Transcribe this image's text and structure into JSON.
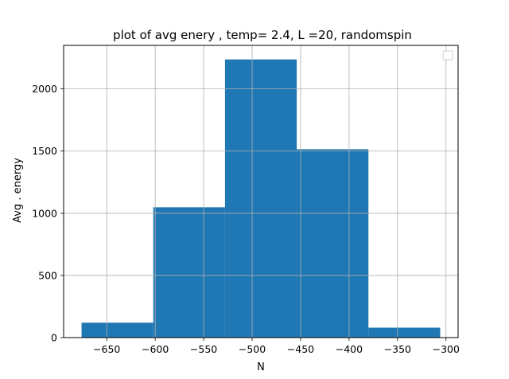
{
  "chart_data": {
    "type": "bar",
    "title": "plot of avg enery , temp= 2.4, L =20, randomspin",
    "xlabel": "N",
    "ylabel": "Avg . energy",
    "bins": [
      {
        "x0": -676,
        "x1": -602,
        "value": 120
      },
      {
        "x0": -602,
        "x1": -528,
        "value": 1048
      },
      {
        "x0": -528,
        "x1": -454,
        "value": 2237
      },
      {
        "x0": -454,
        "x1": -380,
        "value": 1515
      },
      {
        "x0": -380,
        "x1": -306,
        "value": 80
      }
    ],
    "xlim": [
      -694.5,
      -287.5
    ],
    "ylim": [
      0,
      2350
    ],
    "xticks": [
      -650,
      -600,
      -550,
      -500,
      -450,
      -400,
      -350,
      -300
    ],
    "xtick_labels": [
      "−650",
      "−600",
      "−550",
      "−500",
      "−450",
      "−400",
      "−350",
      "−300"
    ],
    "yticks": [
      0,
      500,
      1000,
      1500,
      2000
    ],
    "ytick_labels": [
      "0",
      "500",
      "1000",
      "1500",
      "2000"
    ],
    "grid": true,
    "bar_color": "#1f77b4",
    "legend": "top-right",
    "legend_entries": []
  }
}
